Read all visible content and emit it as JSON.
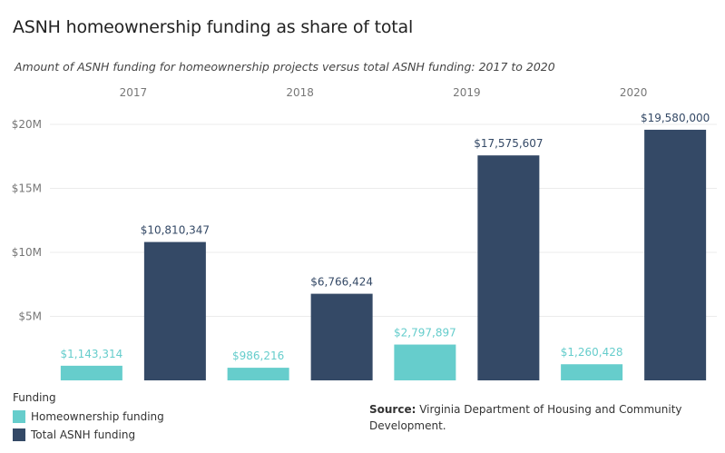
{
  "title": "ASNH homeownership funding as share of total",
  "subtitle": "Amount of ASNH funding for homeownership projects versus total ASNH funding: 2017 to 2020",
  "legend": {
    "title": "Funding",
    "items": [
      "Homeownership funding",
      "Total ASNH funding"
    ]
  },
  "source": {
    "label": "Source:",
    "text": " Virginia Department of Housing and Community Development."
  },
  "colors": {
    "homeownership": "#66CDCC",
    "total": "#344966",
    "grid": "#EBEBEB",
    "tick_text": "#777777"
  },
  "chart_data": {
    "type": "bar",
    "categories": [
      "2017",
      "2018",
      "2019",
      "2020"
    ],
    "series": [
      {
        "name": "Homeownership funding",
        "values": [
          1143314,
          986216,
          2797897,
          1260428
        ],
        "labels": [
          "$1,143,314",
          "$986,216",
          "$2,797,897",
          "$1,260,428"
        ]
      },
      {
        "name": "Total ASNH funding",
        "values": [
          10810347,
          6766424,
          17575607,
          19580000
        ],
        "labels": [
          "$10,810,347",
          "$6,766,424",
          "$17,575,607",
          "$19,580,000"
        ]
      }
    ],
    "ylim": [
      0,
      20000000
    ],
    "yticks": [
      5000000,
      10000000,
      15000000,
      20000000
    ],
    "ytick_labels": [
      "$5M",
      "$10M",
      "$15M",
      "$20M"
    ],
    "grid": true,
    "legend_position": "bottom-left"
  }
}
